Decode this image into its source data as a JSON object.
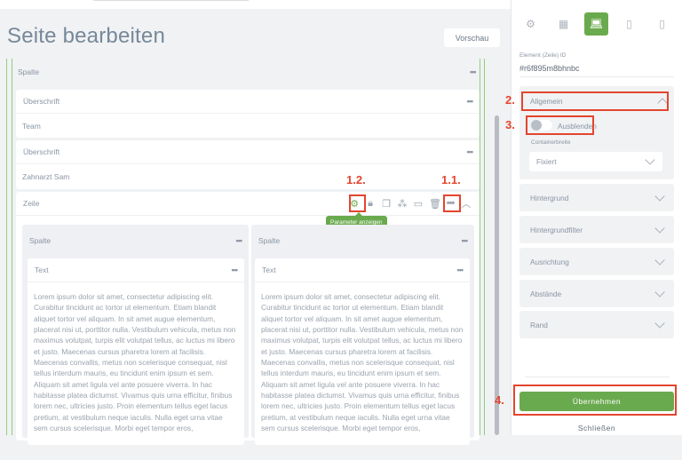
{
  "page": {
    "title": "Seite bearbeiten",
    "preview_label": "Vorschau"
  },
  "editor": {
    "outer_column": {
      "label": "Spalte"
    },
    "blocks": [
      {
        "type": "Überschrift",
        "content": "Team"
      },
      {
        "type": "Überschrift",
        "content": "Zahnarzt Sam"
      }
    ],
    "row": {
      "label": "Zeile",
      "tooltip": "Parameter anzeigen",
      "columns": [
        {
          "label": "Spalte",
          "block_label": "Text",
          "text": "Lorem ipsum dolor sit amet, consectetur adipiscing elit. Curabitur tincidunt ac tortor ut elementum. Etiam blandit aliquet tortor vel aliquam. In sit amet augue elementum, placerat nisi ut, porttitor nulla. Vestibulum vehicula, metus non maximus volutpat, turpis elit volutpat tellus, ac luctus mi libero et justo. Maecenas cursus pharetra lorem at facilisis. Maecenas convallis, metus non scelerisque consequat, nisl tellus interdum mauris, eu tincidunt enim ipsum et sem. Aliquam sit amet ligula vel ante posuere viverra. In hac habitasse platea dictumst. Vivamus quis urna efficitur, finibus lorem nec, ultricies justo. Proin elementum tellus eget lacus pretium, at vestibulum neque iaculis. Nulla eget urna vitae sem cursus scelerisque. Morbi eget tempor eros,"
        },
        {
          "label": "Spalte",
          "block_label": "Text",
          "text": "Lorem ipsum dolor sit amet, consectetur adipiscing elit. Curabitur tincidunt ac tortor ut elementum. Etiam blandit aliquet tortor vel aliquam. In sit amet augue elementum, placerat nisi ut, porttitor nulla. Vestibulum vehicula, metus non maximus volutpat, turpis elit volutpat tellus, ac luctus mi libero et justo. Maecenas cursus pharetra lorem at facilisis. Maecenas convallis, metus non scelerisque consequat, nisl tellus interdum mauris, eu tincidunt enim ipsum et sem. Aliquam sit amet ligula vel ante posuere viverra. In hac habitasse platea dictumst. Vivamus quis urna efficitur, finibus lorem nec, ultricies justo. Proin elementum tellus eget lacus pretium, at vestibulum neque iaculis. Nulla eget urna vitae sem cursus scelerisque. Morbi eget tempor eros,"
        }
      ]
    },
    "more_glyph": "•••"
  },
  "panel": {
    "tabs": [
      "gear-icon",
      "grid-icon",
      "desktop-icon",
      "tablet-icon",
      "mobile-icon"
    ],
    "active_tab": "desktop-icon",
    "element_id_label": "Element (Zeile) ID",
    "element_id": "#r6f895m8bhnbc",
    "general": {
      "label": "Allgemein",
      "hide_label": "Ausblenden",
      "hide_on": false,
      "container_width_label": "Containerbreite",
      "container_width": "Fixiert"
    },
    "sections": [
      "Hintergrund",
      "Hintergrundfilter",
      "Ausrichtung",
      "Abstände",
      "Rand"
    ],
    "apply_label": "Übernehmen",
    "close_label": "Schließen"
  },
  "annotations": {
    "a11": "1.1.",
    "a12": "1.2.",
    "a2": "2.",
    "a3": "3.",
    "a4": "4."
  },
  "colors": {
    "accent": "#6aaa4f",
    "annotation": "#e3452f"
  }
}
